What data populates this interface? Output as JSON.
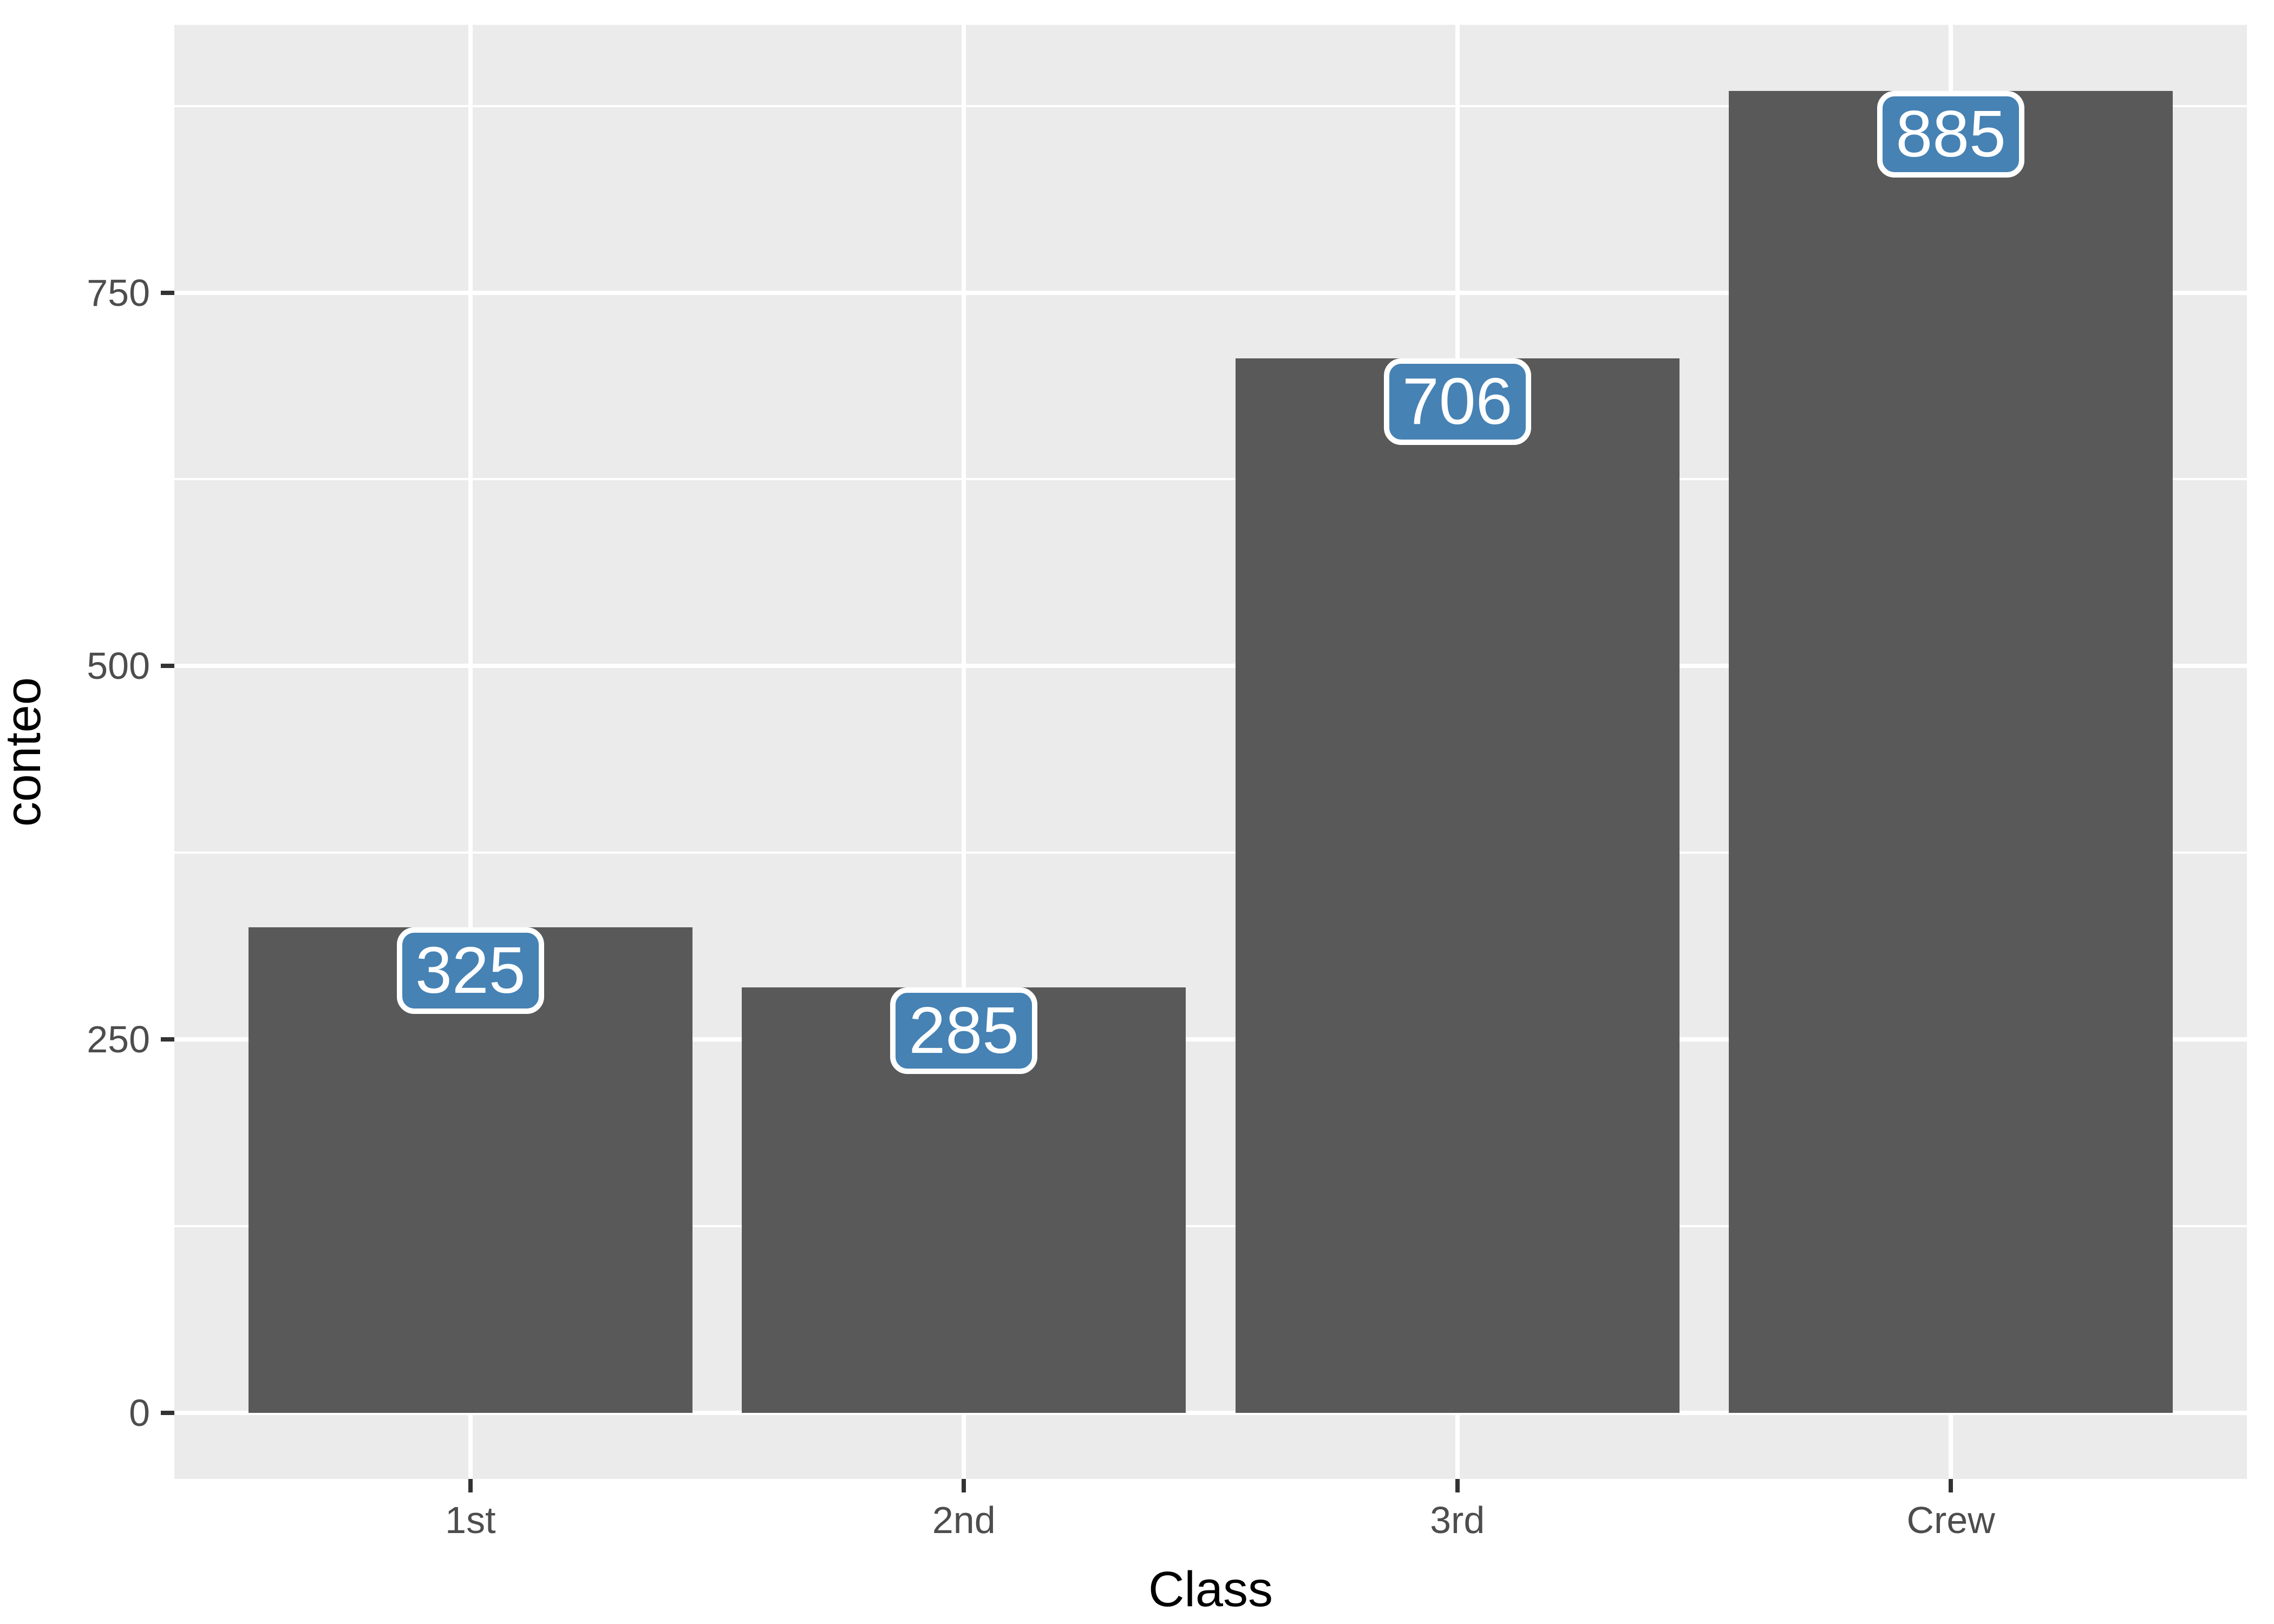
{
  "chart_data": {
    "type": "bar",
    "title": "",
    "categories": [
      "1st",
      "2nd",
      "3rd",
      "Crew"
    ],
    "values": [
      325,
      285,
      706,
      885
    ],
    "bar_labels": [
      "325",
      "285",
      "706",
      "885"
    ],
    "xlabel": "Class",
    "ylabel": "conteo",
    "y_ticks": [
      0,
      250,
      500,
      750
    ],
    "y_tick_labels": [
      "0",
      "250",
      "500",
      "750"
    ],
    "y_minor_ticks": [
      125,
      375,
      625,
      875
    ],
    "ylim": [
      -44.25,
      929.25
    ],
    "grid": true,
    "legend": false,
    "style": "ggplot2-grey-theme"
  },
  "colors": {
    "page_bg": "#FFFFFF",
    "panel_bg": "#EBEBEB",
    "grid_line": "#FFFFFF",
    "bar_fill": "#595959",
    "label_fill": "#4682B4",
    "label_border": "#FFFFFF",
    "label_text": "#FFFFFF",
    "axis_text": "#4D4D4D",
    "axis_title": "#000000",
    "tick_mark": "#333333"
  }
}
